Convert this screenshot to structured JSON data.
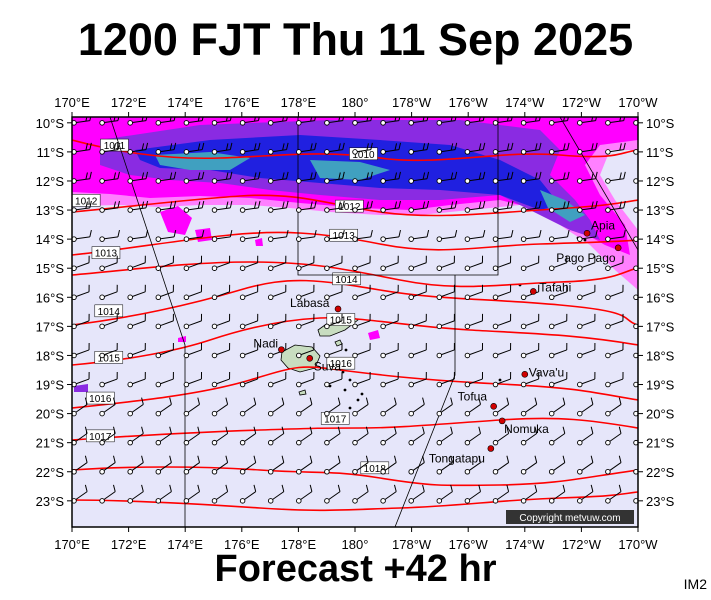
{
  "title": "1200 FJT Thu 11 Sep 2025",
  "footer": "Forecast +42 hr",
  "image_code": "IM2",
  "copyright": "Copyright metvuw.com",
  "colors": {
    "background_sea": "#e6e6fa",
    "isobar": "#ff0000",
    "rain_light": "#ff80ff",
    "rain_medium": "#ff00ff",
    "rain_heavy": "#8a2be2",
    "rain_very_heavy": "#2020e0",
    "rain_extreme": "#40a0c0",
    "land": "#c8ddc0",
    "town_marker": "#d00000"
  },
  "axes": {
    "longitudes_top": [
      "170°E",
      "172°E",
      "174°E",
      "176°E",
      "178°E",
      "180°",
      "178°W",
      "176°W",
      "174°W",
      "172°W",
      "170°W"
    ],
    "longitudes_bottom": [
      "170°E",
      "172°E",
      "174°E",
      "176°E",
      "178°E",
      "180°",
      "178°W",
      "176°W",
      "174°W",
      "172°W",
      "170°W"
    ],
    "latitudes_left": [
      "10°S",
      "11°S",
      "12°S",
      "13°S",
      "14°S",
      "15°S",
      "16°S",
      "17°S",
      "18°S",
      "19°S",
      "20°S",
      "21°S",
      "22°S",
      "23°S"
    ],
    "latitudes_right": [
      "10°S",
      "11°S",
      "12°S",
      "13°S",
      "14°S",
      "15°S",
      "16°S",
      "17°S",
      "18°S",
      "19°S",
      "20°S",
      "21°S",
      "22°S",
      "23°S"
    ]
  },
  "isobars": [
    {
      "label": "1011",
      "lon": 171.5,
      "lat": -10.8
    },
    {
      "label": "1010",
      "lon": 180.3,
      "lat": -11.1
    },
    {
      "label": "1012",
      "lon": 170.5,
      "lat": -12.7
    },
    {
      "label": "1012",
      "lon": 179.8,
      "lat": -12.9
    },
    {
      "label": "1013",
      "lon": 179.6,
      "lat": -13.9
    },
    {
      "label": "1013",
      "lon": 171.2,
      "lat": -14.5
    },
    {
      "label": "1014",
      "lon": 179.7,
      "lat": -15.4
    },
    {
      "label": "1014",
      "lon": 171.3,
      "lat": -16.5
    },
    {
      "label": "1015",
      "lon": 179.5,
      "lat": -16.8
    },
    {
      "label": "1015",
      "lon": 171.3,
      "lat": -18.1
    },
    {
      "label": "1016",
      "lon": 179.5,
      "lat": -18.3
    },
    {
      "label": "1016",
      "lon": 171.0,
      "lat": -19.5
    },
    {
      "label": "1017",
      "lon": 179.3,
      "lat": -20.2
    },
    {
      "label": "1017",
      "lon": 171.0,
      "lat": -20.8
    },
    {
      "label": "1018",
      "lon": -179.3,
      "lat": -21.9
    }
  ],
  "places": [
    {
      "name": "Apia",
      "lon": -171.8,
      "lat": -13.8
    },
    {
      "name": "Pago Pago",
      "lon": -170.7,
      "lat": -14.3
    },
    {
      "name": "Tafahi",
      "lon": -173.7,
      "lat": -15.8
    },
    {
      "name": "Labasa",
      "lon": 179.4,
      "lat": -16.4
    },
    {
      "name": "Nadi",
      "lon": 177.4,
      "lat": -17.8
    },
    {
      "name": "Suva",
      "lon": 178.4,
      "lat": -18.1
    },
    {
      "name": "Vava'u",
      "lon": -174.0,
      "lat": -18.65
    },
    {
      "name": "Tofua",
      "lon": -175.1,
      "lat": -19.75
    },
    {
      "name": "Nomuka",
      "lon": -174.8,
      "lat": -20.25
    },
    {
      "name": "Tongatapu",
      "lon": -175.2,
      "lat": -21.2
    }
  ]
}
